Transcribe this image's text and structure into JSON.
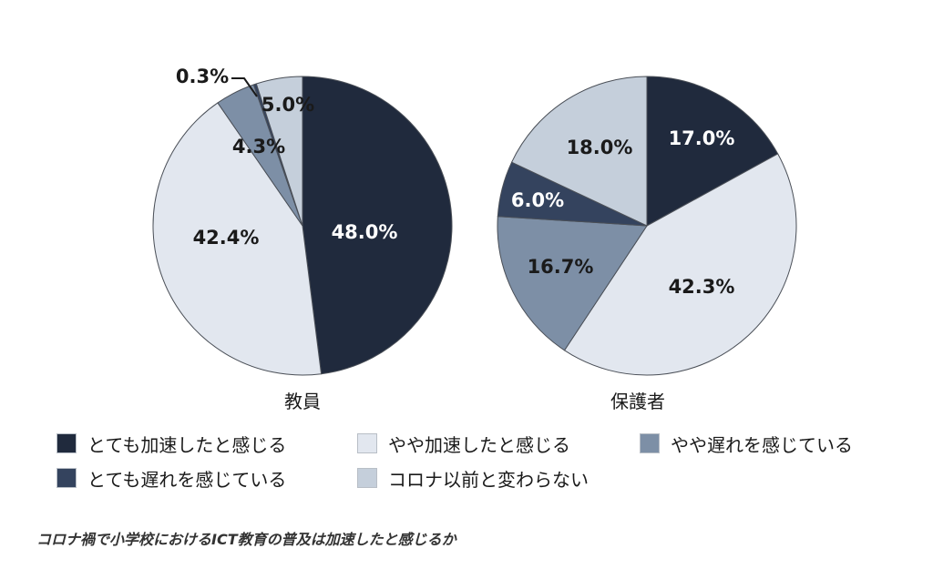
{
  "chart_data": {
    "type": "pie",
    "categories": [
      "とても加速したと感じる",
      "やや加速したと感じる",
      "やや遅れを感じている",
      "とても遅れを感じている",
      "コロナ以前と変わらない"
    ],
    "colors": [
      "#202a3d",
      "#e2e7ef",
      "#7d8fa6",
      "#34435e",
      "#c5cfdb"
    ],
    "pies": [
      {
        "name": "教員",
        "values": [
          48.0,
          42.4,
          4.3,
          0.3,
          5.0
        ],
        "labels": [
          "48.0%",
          "42.4%",
          "4.3%",
          "0.3%",
          "5.0%"
        ]
      },
      {
        "name": "保護者",
        "values": [
          17.0,
          42.3,
          16.7,
          6.0,
          18.0
        ],
        "labels": [
          "17.0%",
          "42.3%",
          "16.7%",
          "6.0%",
          "18.0%"
        ]
      }
    ]
  },
  "caption": "コロナ禍で小学校におけるICT教育の普及は加速したと感じるか"
}
